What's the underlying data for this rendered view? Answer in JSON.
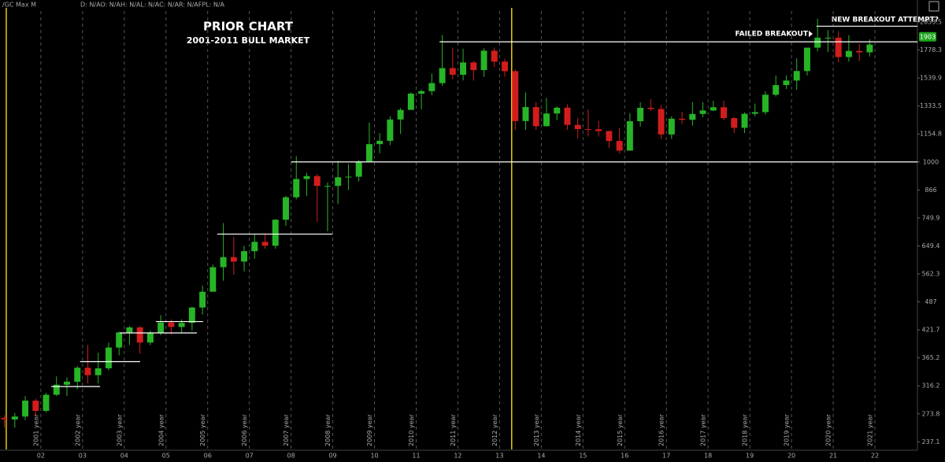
{
  "header": {
    "symbol": "/GC Max M",
    "info": "D: N/AO: N/AH: N/AL: N/AC: N/AR: N/AFPL: N/A"
  },
  "chart_data": {
    "type": "candlestick",
    "title": "PRIOR CHART",
    "subtitle": "2001-2011 BULL MARKET",
    "annotations": [
      "FAILED BREAKOUT",
      "NEW BREAKOUT ATTEMPT?"
    ],
    "last_price": 1903,
    "log_scale": true,
    "up_color": "#27b427",
    "down_color": "#d21d1d",
    "x": [
      2001.125,
      2001.375,
      2001.625,
      2001.875,
      2002.125,
      2002.375,
      2002.625,
      2002.875,
      2003.125,
      2003.375,
      2003.625,
      2003.875,
      2004.125,
      2004.375,
      2004.625,
      2004.875,
      2005.125,
      2005.375,
      2005.625,
      2005.875,
      2006.125,
      2006.375,
      2006.625,
      2006.875,
      2007.125,
      2007.375,
      2007.625,
      2007.875,
      2008.125,
      2008.375,
      2008.625,
      2008.875,
      2009.125,
      2009.375,
      2009.625,
      2009.875,
      2010.125,
      2010.375,
      2010.625,
      2010.875,
      2011.125,
      2011.375,
      2011.625,
      2011.875,
      2012.125,
      2012.375,
      2012.625,
      2012.875,
      2013.125,
      2013.375,
      2013.625,
      2013.875,
      2014.125,
      2014.375,
      2014.625,
      2014.875,
      2015.125,
      2015.375,
      2015.625,
      2015.875,
      2016.125,
      2016.375,
      2016.625,
      2016.875,
      2017.125,
      2017.375,
      2017.625,
      2017.875,
      2018.125,
      2018.375,
      2018.625,
      2018.875,
      2019.125,
      2019.375,
      2019.625,
      2019.875,
      2020.125,
      2020.375,
      2020.625,
      2020.875,
      2021.125,
      2021.375,
      2021.625,
      2021.875
    ],
    "open": [
      268,
      266,
      270,
      293,
      278,
      302,
      318,
      323,
      347,
      334,
      346,
      385,
      416,
      427,
      395,
      415,
      438,
      428,
      437,
      473,
      513,
      582,
      613,
      599,
      632,
      663,
      650,
      743,
      834,
      916,
      930,
      884,
      884,
      924,
      927,
      1003,
      1096,
      1115,
      1244,
      1307,
      1421,
      1439,
      1500,
      1620,
      1566,
      1668,
      1604,
      1772,
      1675,
      1595,
      1234,
      1326,
      1202,
      1283,
      1322,
      1210,
      1184,
      1183,
      1172,
      1114,
      1060,
      1233,
      1321,
      1313,
      1152,
      1249,
      1242,
      1280,
      1303,
      1325,
      1253,
      1192,
      1281,
      1292,
      1413,
      1485,
      1520,
      1596,
      1800,
      1895,
      1895,
      1715,
      1770,
      1757
    ],
    "high": [
      272,
      275,
      300,
      296,
      305,
      332,
      330,
      350,
      390,
      375,
      395,
      418,
      430,
      430,
      420,
      455,
      445,
      445,
      475,
      530,
      590,
      730,
      680,
      650,
      690,
      690,
      745,
      840,
      1030,
      945,
      940,
      900,
      1006,
      990,
      1010,
      1225,
      1160,
      1265,
      1320,
      1430,
      1450,
      1575,
      1920,
      1800,
      1790,
      1680,
      1795,
      1800,
      1700,
      1610,
      1430,
      1360,
      1390,
      1330,
      1345,
      1255,
      1310,
      1235,
      1175,
      1190,
      1285,
      1360,
      1380,
      1340,
      1265,
      1295,
      1360,
      1360,
      1370,
      1370,
      1260,
      1290,
      1350,
      1440,
      1560,
      1560,
      1705,
      1800,
      2090,
      1970,
      1960,
      1920,
      1835,
      1880
    ],
    "low": [
      255,
      255,
      265,
      271,
      276,
      300,
      300,
      311,
      320,
      320,
      342,
      370,
      390,
      373,
      390,
      410,
      411,
      415,
      420,
      456,
      515,
      543,
      560,
      570,
      608,
      640,
      640,
      720,
      825,
      840,
      735,
      700,
      805,
      865,
      905,
      1000,
      1045,
      1090,
      1155,
      1310,
      1310,
      1410,
      1480,
      1530,
      1520,
      1520,
      1550,
      1630,
      1550,
      1180,
      1180,
      1180,
      1200,
      1240,
      1180,
      1130,
      1140,
      1140,
      1075,
      1045,
      1060,
      1200,
      1300,
      1125,
      1125,
      1215,
      1205,
      1260,
      1300,
      1240,
      1160,
      1160,
      1265,
      1275,
      1400,
      1455,
      1450,
      1560,
      1765,
      1760,
      1670,
      1675,
      1680,
      1720
    ],
    "close": [
      266,
      270,
      293,
      278,
      302,
      318,
      323,
      347,
      334,
      346,
      385,
      416,
      427,
      395,
      415,
      438,
      428,
      437,
      473,
      513,
      582,
      613,
      599,
      632,
      663,
      650,
      743,
      834,
      916,
      930,
      884,
      884,
      924,
      927,
      1003,
      1096,
      1115,
      1244,
      1307,
      1421,
      1439,
      1500,
      1620,
      1566,
      1668,
      1604,
      1772,
      1675,
      1595,
      1234,
      1326,
      1202,
      1283,
      1322,
      1210,
      1184,
      1183,
      1172,
      1114,
      1060,
      1233,
      1321,
      1313,
      1152,
      1249,
      1242,
      1280,
      1303,
      1325,
      1253,
      1192,
      1281,
      1292,
      1413,
      1485,
      1520,
      1596,
      1800,
      1895,
      1895,
      1715,
      1770,
      1757,
      1829
    ],
    "xlim": [
      2001.02,
      2023.02
    ],
    "xticks": [
      {
        "value": 2002,
        "label": "02"
      },
      {
        "value": 2003,
        "label": "03"
      },
      {
        "value": 2004,
        "label": "04"
      },
      {
        "value": 2005,
        "label": "05"
      },
      {
        "value": 2006,
        "label": "06"
      },
      {
        "value": 2007,
        "label": "07"
      },
      {
        "value": 2008,
        "label": "08"
      },
      {
        "value": 2009,
        "label": "09"
      },
      {
        "value": 2010,
        "label": "10"
      },
      {
        "value": 2011,
        "label": "11"
      },
      {
        "value": 2012,
        "label": "12"
      },
      {
        "value": 2013,
        "label": "13"
      },
      {
        "value": 2014,
        "label": "14"
      },
      {
        "value": 2015,
        "label": "15"
      },
      {
        "value": 2016,
        "label": "16"
      },
      {
        "value": 2017,
        "label": "17"
      },
      {
        "value": 2018,
        "label": "18"
      },
      {
        "value": 2019,
        "label": "19"
      },
      {
        "value": 2020,
        "label": "20"
      },
      {
        "value": 2021,
        "label": "21"
      },
      {
        "value": 2022,
        "label": "22"
      }
    ],
    "period_labels": [
      "2001 year",
      "2002 year",
      "2003 year",
      "2004 year",
      "2005 year",
      "2006 year",
      "2007 year",
      "2008 year",
      "2009 year",
      "2010 year",
      "2011 year",
      "2012 year",
      "2013 year",
      "2014 year",
      "2015 year",
      "2016 year",
      "2017 year",
      "2018 year",
      "2019 year",
      "2020 year",
      "2021 year"
    ],
    "ylim": [
      228,
      2300
    ],
    "yticks": [
      237.1,
      273.8,
      316.2,
      365.2,
      421.7,
      487,
      562.3,
      649.4,
      749.9,
      866,
      1000,
      1154.8,
      1333.5,
      1539.9,
      1778.3,
      2053.5
    ],
    "markers": [
      2001.17,
      2013.29
    ],
    "levels": [
      {
        "value": 315,
        "start": 2002.25,
        "end": 2003.42
      },
      {
        "value": 358,
        "start": 2002.94,
        "end": 2004.38
      },
      {
        "value": 415,
        "start": 2003.89,
        "end": 2005.74
      },
      {
        "value": 440,
        "start": 2004.76,
        "end": 2005.89
      },
      {
        "value": 690,
        "start": 2006.23,
        "end": 2008.99
      },
      {
        "value": 1000,
        "start": 2008.0,
        "end": 2023.02
      },
      {
        "value": 1855,
        "start": 2011.56,
        "end": 2023.02
      },
      {
        "value": 2010,
        "start": 2020.6,
        "end": 2023.02
      }
    ]
  }
}
